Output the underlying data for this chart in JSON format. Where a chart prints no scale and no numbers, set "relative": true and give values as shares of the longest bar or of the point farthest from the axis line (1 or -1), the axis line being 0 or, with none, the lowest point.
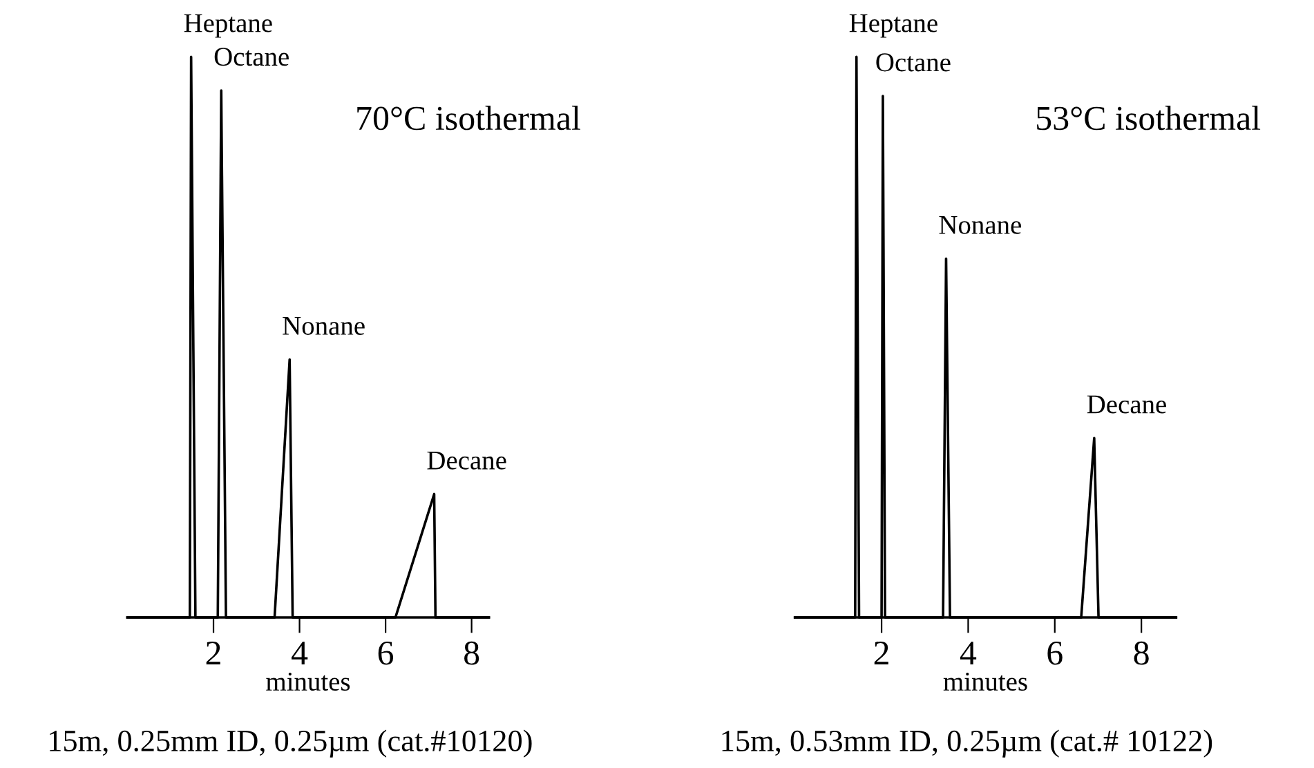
{
  "chart_data": [
    {
      "type": "line",
      "relative": true,
      "xlabel": "minutes",
      "xlim": [
        0,
        8.4
      ],
      "xticks": [
        2,
        4,
        6,
        8
      ],
      "x": [
        0,
        1.45,
        1.48,
        1.58,
        2.1,
        2.18,
        2.29,
        3.42,
        3.77,
        3.84,
        6.23,
        7.13,
        7.16,
        8.4
      ],
      "series": [
        {
          "color": "#000000",
          "values": [
            0,
            0,
            1,
            0,
            0,
            0.94,
            0,
            0,
            0.46,
            0,
            0,
            0.22,
            0,
            0
          ]
        }
      ],
      "annotations": [
        {
          "text": "Heptane",
          "x": 1.48,
          "y": 1
        },
        {
          "text": "Octane",
          "x": 2.18,
          "y": 0.94
        },
        {
          "text": "Nonane",
          "x": 3.77,
          "y": 0.46
        },
        {
          "text": "Decane",
          "x": 7.13,
          "y": 0.22
        },
        "70°C isothermal",
        "15m, 0.25mm ID, 0.25µm (cat.#10120)"
      ]
    },
    {
      "type": "line",
      "relative": true,
      "xlabel": "minutes",
      "xlim": [
        0,
        8.8
      ],
      "xticks": [
        2,
        4,
        6,
        8
      ],
      "x": [
        0,
        1.39,
        1.42,
        1.48,
        2.0,
        2.03,
        2.08,
        3.42,
        3.49,
        3.58,
        6.61,
        6.91,
        7.01,
        8.8
      ],
      "series": [
        {
          "color": "#000000",
          "values": [
            0,
            0,
            1,
            0,
            0,
            0.93,
            0,
            0,
            0.64,
            0,
            0,
            0.32,
            0,
            0
          ]
        }
      ],
      "annotations": [
        {
          "text": "Heptane",
          "x": 1.42,
          "y": 1
        },
        {
          "text": "Octane",
          "x": 2.03,
          "y": 0.93
        },
        {
          "text": "Nonane",
          "x": 3.49,
          "y": 0.64
        },
        {
          "text": "Decane",
          "x": 6.91,
          "y": 0.32
        },
        "53°C isothermal",
        "15m, 0.53mm ID, 0.25µm (cat.# 10122)"
      ]
    }
  ]
}
